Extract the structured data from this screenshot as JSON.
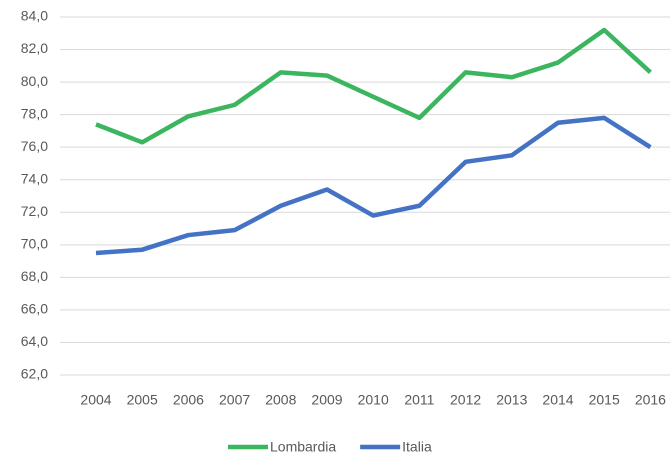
{
  "chart_data": {
    "type": "line",
    "x": [
      "2004",
      "2005",
      "2006",
      "2007",
      "2008",
      "2009",
      "2010",
      "2011",
      "2012",
      "2013",
      "2014",
      "2015",
      "2016"
    ],
    "series": [
      {
        "name": "Lombardia",
        "color": "#3cb55f",
        "values": [
          77.4,
          76.3,
          77.9,
          78.6,
          80.6,
          80.4,
          79.1,
          77.8,
          80.6,
          80.3,
          81.2,
          83.2,
          80.6
        ]
      },
      {
        "name": "Italia",
        "color": "#4472c4",
        "values": [
          69.5,
          69.7,
          70.6,
          70.9,
          72.4,
          73.4,
          71.8,
          72.4,
          75.1,
          75.5,
          77.5,
          77.8,
          76.0
        ]
      }
    ],
    "ylim": [
      62,
      84
    ],
    "yticks": [
      {
        "value": 62,
        "label": "62,0"
      },
      {
        "value": 64,
        "label": "64,0"
      },
      {
        "value": 66,
        "label": "66,0"
      },
      {
        "value": 68,
        "label": "68,0"
      },
      {
        "value": 70,
        "label": "70,0"
      },
      {
        "value": 72,
        "label": "72,0"
      },
      {
        "value": 74,
        "label": "74,0"
      },
      {
        "value": 76,
        "label": "76,0"
      },
      {
        "value": 78,
        "label": "78,0"
      },
      {
        "value": 80,
        "label": "80,0"
      },
      {
        "value": 82,
        "label": "82,0"
      },
      {
        "value": 84,
        "label": "84,0"
      }
    ],
    "grid": true,
    "legend": "bottom"
  }
}
